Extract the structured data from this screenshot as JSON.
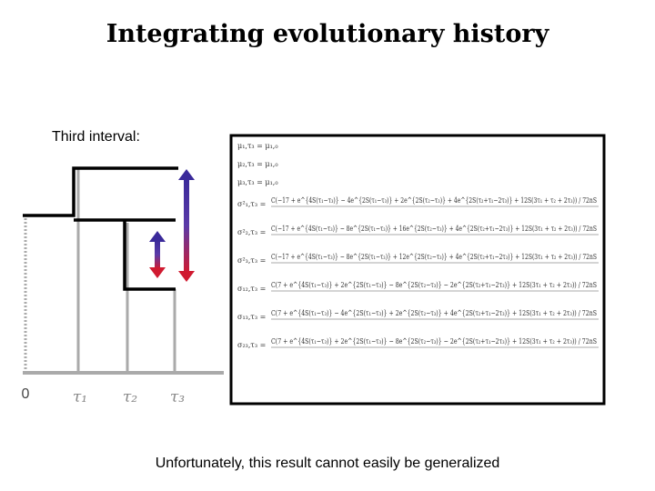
{
  "slide": {
    "title": "Integrating evolutionary history",
    "interval_label": "Third interval:",
    "axis_labels": [
      "0",
      "τ₁",
      "τ₂",
      "τ₃"
    ],
    "equations": [
      {
        "lhs": "μ₁,τ₃ = μ₁,₀",
        "rhs": ""
      },
      {
        "lhs": "μ₂,τ₃ = μ₁,₀",
        "rhs": ""
      },
      {
        "lhs": "μ₃,τ₃ = μ₁,₀",
        "rhs": ""
      },
      {
        "lhs": "σ²₁,τ₃ =",
        "rhs": "C(−17 + e^{4S(τ₁−τ₃)} − 4e^{2S(τ₁−τ₃)} + 2e^{2S(τ₂−τ₃)} + 4e^{2S(τ₂+τ₁−2τ₃)} + 12S(3τ₁ + τ₂ + 2τ₃)) / 72nS"
      },
      {
        "lhs": "σ²₂,τ₃ =",
        "rhs": "C(−17 + e^{4S(τ₁−τ₃)} − 8e^{2S(τ₁−τ₃)} + 16e^{2S(τ₂−τ₃)} + 4e^{2S(τ₂+τ₁−2τ₃)} + 12S(3τ₁ + τ₂ + 2τ₃)) / 72nS"
      },
      {
        "lhs": "σ²₃,τ₃ =",
        "rhs": "C(−17 + e^{4S(τ₁−τ₃)} − 8e^{2S(τ₁−τ₃)} + 12e^{2S(τ₂−τ₃)} + 4e^{2S(τ₂+τ₁−2τ₃)} + 12S(3τ₁ + τ₂ + 2τ₃)) / 72nS"
      },
      {
        "lhs": "σ₁₂,τ₃ =",
        "rhs": "C(7 + e^{4S(τ₁−τ₃)} + 2e^{2S(τ₁−τ₃)} − 8e^{2S(τ₂−τ₃)} − 2e^{2S(τ₂+τ₁−2τ₃)} + 12S(3τ₁ + τ₂ + 2τ₃)) / 72nS"
      },
      {
        "lhs": "σ₁₃,τ₃ =",
        "rhs": "C(7 + e^{4S(τ₁−τ₃)} − 4e^{2S(τ₁−τ₃)} + 2e^{2S(τ₂−τ₃)} + 4e^{2S(τ₂+τ₁−2τ₃)} + 12S(3τ₁ + τ₂ + 2τ₃)) / 72nS"
      },
      {
        "lhs": "σ₂₃,τ₃ =",
        "rhs": "C(7 + e^{4S(τ₁−τ₃)} + 2e^{2S(τ₁−τ₃)} − 8e^{2S(τ₂−τ₃)} − 2e^{2S(τ₂+τ₁−2τ₃)} + 12S(3τ₁ + τ₂ + 2τ₃)) / 72nS"
      }
    ],
    "footer": "Unfortunately, this result cannot easily be generalized"
  }
}
